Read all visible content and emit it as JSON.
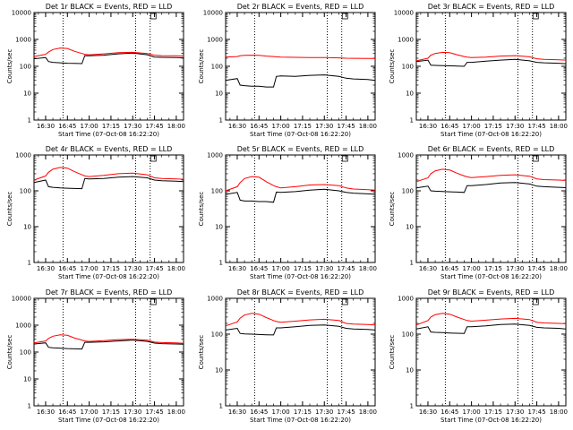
{
  "figure": {
    "background": "#ffffff",
    "axis_color": "#000000",
    "series_colors": {
      "events": "#000000",
      "lld": "#ff0000"
    }
  },
  "chart_data": [
    {
      "type": "line",
      "title": "Det 1r BLACK = Events, RED = LLD",
      "xlabel": "Start Time (07-Oct-08 16:22:20)",
      "ylabel": "Counts/sec",
      "yscale": "log",
      "ylim": [
        1,
        10000
      ],
      "xlim": [
        "16:22",
        "18:05"
      ],
      "xticks": [
        "16:30",
        "16:45",
        "17:00",
        "17:15",
        "17:30",
        "17:45",
        "18:00"
      ],
      "yticks": [
        "1",
        "10",
        "100",
        "1000",
        "10000"
      ],
      "marker_lines": [
        "16:42",
        "17:32",
        "17:42"
      ],
      "x": [
        "16:22",
        "16:30",
        "16:32",
        "16:35",
        "16:40",
        "16:45",
        "16:50",
        "16:55",
        "16:57",
        "17:00",
        "17:10",
        "17:20",
        "17:30",
        "17:40",
        "17:45",
        "17:50",
        "18:00",
        "18:05"
      ],
      "series": [
        {
          "values": [
            190,
            210,
            150,
            140,
            135,
            130,
            128,
            126,
            250,
            245,
            260,
            290,
            310,
            270,
            220,
            215,
            210,
            205
          ]
        },
        {
          "values": [
            230,
            280,
            340,
            420,
            480,
            460,
            360,
            300,
            280,
            270,
            290,
            320,
            330,
            300,
            260,
            250,
            245,
            240
          ]
        }
      ]
    },
    {
      "type": "line",
      "title": "Det 2r BLACK = Events, RED = LLD",
      "xlabel": "Start Time (07-Oct-08 16:22:20)",
      "ylabel": "Counts/sec",
      "yscale": "log",
      "ylim": [
        1,
        10000
      ],
      "xlim": [
        "16:22",
        "18:05"
      ],
      "xticks": [
        "16:30",
        "16:45",
        "17:00",
        "17:15",
        "17:30",
        "17:45",
        "18:00"
      ],
      "yticks": [
        "1",
        "10",
        "100",
        "1000",
        "10000"
      ],
      "marker_lines": [
        "16:42",
        "17:32",
        "17:42"
      ],
      "x": [
        "16:22",
        "16:30",
        "16:32",
        "16:35",
        "16:40",
        "16:45",
        "16:50",
        "16:55",
        "16:57",
        "17:00",
        "17:10",
        "17:20",
        "17:30",
        "17:40",
        "17:45",
        "17:50",
        "18:00",
        "18:05"
      ],
      "series": [
        {
          "values": [
            30,
            35,
            20,
            19,
            18,
            18,
            17,
            17,
            42,
            44,
            42,
            46,
            48,
            42,
            36,
            34,
            32,
            30
          ]
        },
        {
          "values": [
            220,
            230,
            245,
            255,
            260,
            255,
            240,
            230,
            225,
            220,
            215,
            212,
            210,
            205,
            200,
            198,
            196,
            195
          ]
        }
      ]
    },
    {
      "type": "line",
      "title": "Det 3r BLACK = Events, RED = LLD",
      "xlabel": "Start Time (07-Oct-08 16:22:20)",
      "ylabel": "Counts/sec",
      "yscale": "log",
      "ylim": [
        1,
        10000
      ],
      "xlim": [
        "16:22",
        "18:05"
      ],
      "xticks": [
        "16:30",
        "16:45",
        "17:00",
        "17:15",
        "17:30",
        "17:45",
        "18:00"
      ],
      "yticks": [
        "1",
        "10",
        "100",
        "1000",
        "10000"
      ],
      "marker_lines": [
        "16:42",
        "17:32",
        "17:42"
      ],
      "x": [
        "16:22",
        "16:30",
        "16:32",
        "16:35",
        "16:40",
        "16:45",
        "16:50",
        "16:55",
        "16:57",
        "17:00",
        "17:10",
        "17:20",
        "17:30",
        "17:40",
        "17:45",
        "17:50",
        "18:00",
        "18:05"
      ],
      "series": [
        {
          "values": [
            150,
            170,
            110,
            108,
            106,
            104,
            102,
            100,
            140,
            140,
            155,
            170,
            180,
            160,
            140,
            135,
            130,
            125
          ]
        },
        {
          "values": [
            160,
            200,
            260,
            300,
            330,
            320,
            270,
            230,
            220,
            210,
            220,
            240,
            250,
            225,
            190,
            180,
            175,
            170
          ]
        }
      ]
    },
    {
      "type": "line",
      "title": "Det 4r BLACK = Events, RED = LLD",
      "xlabel": "Start Time (07-Oct-08 16:22:20)",
      "ylabel": "Counts/sec",
      "yscale": "log",
      "ylim": [
        1,
        1000
      ],
      "xlim": [
        "16:22",
        "18:05"
      ],
      "xticks": [
        "16:30",
        "16:45",
        "17:00",
        "17:15",
        "17:30",
        "17:45",
        "18:00"
      ],
      "yticks": [
        "1",
        "10",
        "100",
        "1000"
      ],
      "marker_lines": [
        "16:42",
        "17:32",
        "17:42"
      ],
      "x": [
        "16:22",
        "16:30",
        "16:32",
        "16:35",
        "16:40",
        "16:45",
        "16:50",
        "16:55",
        "16:57",
        "17:00",
        "17:10",
        "17:20",
        "17:30",
        "17:40",
        "17:45",
        "17:50",
        "18:00",
        "18:05"
      ],
      "series": [
        {
          "values": [
            170,
            200,
            130,
            125,
            120,
            118,
            116,
            115,
            220,
            215,
            220,
            240,
            250,
            230,
            200,
            190,
            185,
            180
          ]
        },
        {
          "values": [
            200,
            260,
            330,
            400,
            450,
            430,
            340,
            280,
            260,
            250,
            270,
            300,
            310,
            280,
            230,
            220,
            215,
            210
          ]
        }
      ]
    },
    {
      "type": "line",
      "title": "Det 5r BLACK = Events, RED = LLD",
      "xlabel": "Start Time (07-Oct-08 16:22:20)",
      "ylabel": "Counts/sec",
      "yscale": "log",
      "ylim": [
        1,
        1000
      ],
      "xlim": [
        "16:22",
        "18:05"
      ],
      "xticks": [
        "16:30",
        "16:45",
        "17:00",
        "17:15",
        "17:30",
        "17:45",
        "18:00"
      ],
      "yticks": [
        "1",
        "10",
        "100",
        "1000"
      ],
      "marker_lines": [
        "16:42",
        "17:32",
        "17:42"
      ],
      "x": [
        "16:22",
        "16:30",
        "16:32",
        "16:35",
        "16:40",
        "16:45",
        "16:50",
        "16:55",
        "16:57",
        "17:00",
        "17:10",
        "17:20",
        "17:30",
        "17:40",
        "17:45",
        "17:50",
        "18:00",
        "18:05"
      ],
      "series": [
        {
          "values": [
            80,
            90,
            55,
            52,
            52,
            50,
            50,
            48,
            92,
            90,
            95,
            105,
            110,
            100,
            90,
            86,
            82,
            80
          ]
        },
        {
          "values": [
            100,
            130,
            170,
            220,
            250,
            240,
            180,
            140,
            130,
            120,
            130,
            145,
            150,
            140,
            120,
            112,
            108,
            105
          ]
        }
      ]
    },
    {
      "type": "line",
      "title": "Det 6r BLACK = Events, RED = LLD",
      "xlabel": "Start Time (07-Oct-08 16:22:20)",
      "ylabel": "Counts/sec",
      "yscale": "log",
      "ylim": [
        1,
        1000
      ],
      "xlim": [
        "16:22",
        "18:05"
      ],
      "xticks": [
        "16:30",
        "16:45",
        "17:00",
        "17:15",
        "17:30",
        "17:45",
        "18:00"
      ],
      "yticks": [
        "1",
        "10",
        "100",
        "1000"
      ],
      "marker_lines": [
        "16:42",
        "17:32",
        "17:42"
      ],
      "x": [
        "16:22",
        "16:30",
        "16:32",
        "16:35",
        "16:40",
        "16:45",
        "16:50",
        "16:55",
        "16:57",
        "17:00",
        "17:10",
        "17:20",
        "17:30",
        "17:40",
        "17:45",
        "17:50",
        "18:00",
        "18:05"
      ],
      "series": [
        {
          "values": [
            120,
            135,
            100,
            98,
            96,
            94,
            92,
            90,
            140,
            140,
            150,
            165,
            170,
            155,
            135,
            130,
            125,
            122
          ]
        },
        {
          "values": [
            180,
            230,
            300,
            360,
            400,
            380,
            310,
            260,
            245,
            235,
            250,
            270,
            280,
            255,
            215,
            205,
            200,
            195
          ]
        }
      ]
    },
    {
      "type": "line",
      "title": "Det 7r BLACK = Events, RED = LLD",
      "xlabel": "Start Time (07-Oct-08 16:22:20)",
      "ylabel": "Counts/sec",
      "yscale": "log",
      "ylim": [
        1,
        10000
      ],
      "xlim": [
        "16:22",
        "18:05"
      ],
      "xticks": [
        "16:30",
        "16:45",
        "17:00",
        "17:15",
        "17:30",
        "17:45",
        "18:00"
      ],
      "yticks": [
        "1",
        "10",
        "100",
        "1000",
        "10000"
      ],
      "marker_lines": [
        "16:42",
        "17:32",
        "17:42"
      ],
      "x": [
        "16:22",
        "16:30",
        "16:32",
        "16:35",
        "16:40",
        "16:45",
        "16:50",
        "16:55",
        "16:57",
        "17:00",
        "17:10",
        "17:20",
        "17:30",
        "17:40",
        "17:45",
        "17:50",
        "18:00",
        "18:05"
      ],
      "series": [
        {
          "values": [
            200,
            220,
            150,
            145,
            140,
            135,
            132,
            130,
            230,
            230,
            240,
            260,
            280,
            250,
            215,
            205,
            200,
            195
          ]
        },
        {
          "values": [
            220,
            260,
            320,
            390,
            440,
            420,
            330,
            280,
            260,
            250,
            265,
            290,
            300,
            275,
            235,
            225,
            218,
            212
          ]
        }
      ]
    },
    {
      "type": "line",
      "title": "Det 8r BLACK = Events, RED = LLD",
      "xlabel": "Start Time (07-Oct-08 16:22:20)",
      "ylabel": "Counts/sec",
      "yscale": "log",
      "ylim": [
        1,
        1000
      ],
      "xlim": [
        "16:22",
        "18:05"
      ],
      "xticks": [
        "16:30",
        "16:45",
        "17:00",
        "17:15",
        "17:30",
        "17:45",
        "18:00"
      ],
      "yticks": [
        "1",
        "10",
        "100",
        "1000"
      ],
      "marker_lines": [
        "16:42",
        "17:32",
        "17:42"
      ],
      "x": [
        "16:22",
        "16:30",
        "16:32",
        "16:35",
        "16:40",
        "16:45",
        "16:50",
        "16:55",
        "16:57",
        "17:00",
        "17:10",
        "17:20",
        "17:30",
        "17:40",
        "17:45",
        "17:50",
        "18:00",
        "18:05"
      ],
      "series": [
        {
          "values": [
            130,
            145,
            105,
            102,
            100,
            98,
            96,
            95,
            150,
            150,
            160,
            175,
            180,
            165,
            145,
            140,
            135,
            130
          ]
        },
        {
          "values": [
            170,
            220,
            280,
            340,
            380,
            360,
            290,
            240,
            225,
            215,
            230,
            250,
            260,
            240,
            200,
            190,
            185,
            180
          ]
        }
      ]
    },
    {
      "type": "line",
      "title": "Det 9r BLACK = Events, RED = LLD",
      "xlabel": "Start Time (07-Oct-08 16:22:20)",
      "ylabel": "Counts/sec",
      "yscale": "log",
      "ylim": [
        1,
        1000
      ],
      "xlim": [
        "16:22",
        "18:05"
      ],
      "xticks": [
        "16:30",
        "16:45",
        "17:00",
        "17:15",
        "17:30",
        "17:45",
        "18:00"
      ],
      "yticks": [
        "1",
        "10",
        "100",
        "1000"
      ],
      "marker_lines": [
        "16:42",
        "17:32",
        "17:42"
      ],
      "x": [
        "16:22",
        "16:30",
        "16:32",
        "16:35",
        "16:40",
        "16:45",
        "16:50",
        "16:55",
        "16:57",
        "17:00",
        "17:10",
        "17:20",
        "17:30",
        "17:40",
        "17:45",
        "17:50",
        "18:00",
        "18:05"
      ],
      "series": [
        {
          "values": [
            140,
            160,
            115,
            112,
            110,
            108,
            106,
            105,
            160,
            160,
            170,
            185,
            190,
            175,
            155,
            150,
            145,
            140
          ]
        },
        {
          "values": [
            180,
            240,
            300,
            350,
            380,
            360,
            300,
            255,
            240,
            230,
            245,
            265,
            275,
            255,
            215,
            205,
            200,
            195
          ]
        }
      ]
    }
  ]
}
